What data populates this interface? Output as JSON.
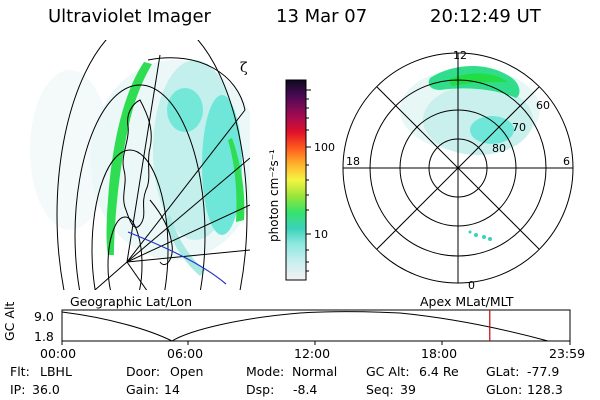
{
  "header": {
    "instrument": "Ultraviolet Imager",
    "date": "13 Mar 07",
    "time": "20:12:49 UT"
  },
  "colorbar": {
    "unit_label": "photon cm⁻²s⁻¹",
    "ticks": [
      "100",
      "10"
    ],
    "scale": "log"
  },
  "left_panel": {
    "label": "Geographic Lat/Lon",
    "glyph": "ζ"
  },
  "polar_panel": {
    "label": "Apex MLat/MLT",
    "mlt_labels": {
      "top": "12",
      "left": "18",
      "right": "6",
      "bottom": "0"
    },
    "lat_labels": [
      "60",
      "70",
      "80"
    ]
  },
  "altitude_plot": {
    "ylabel": "GC Alt",
    "y_ticks": [
      "9.0",
      "1.8"
    ],
    "x_ticks": [
      "00:00",
      "06:00",
      "12:00",
      "18:00",
      "23:59"
    ],
    "marker_time_hours": 20.21,
    "marker_color": "#cc0000"
  },
  "status": {
    "row1": [
      {
        "label": "Flt:",
        "value": "LBHL"
      },
      {
        "label": "Door:",
        "value": "Open"
      },
      {
        "label": "Mode:",
        "value": "Normal"
      },
      {
        "label": "GC Alt:",
        "value": "6.4 Re"
      },
      {
        "label": "GLat:",
        "value": "-77.9"
      }
    ],
    "row2": [
      {
        "label": "IP:",
        "value": "36.0"
      },
      {
        "label": "Gain:",
        "value": "14"
      },
      {
        "label": "Dsp:",
        "value": "-8.4"
      },
      {
        "label": "Seq:",
        "value": "39"
      },
      {
        "label": "GLon:",
        "value": "128.3"
      }
    ]
  },
  "colors": {
    "green": "#22dd44",
    "cyan": "#6ee6d8",
    "light_cyan": "#bcefeb",
    "map_line": "#000000",
    "coast_blue": "#2233cc"
  }
}
